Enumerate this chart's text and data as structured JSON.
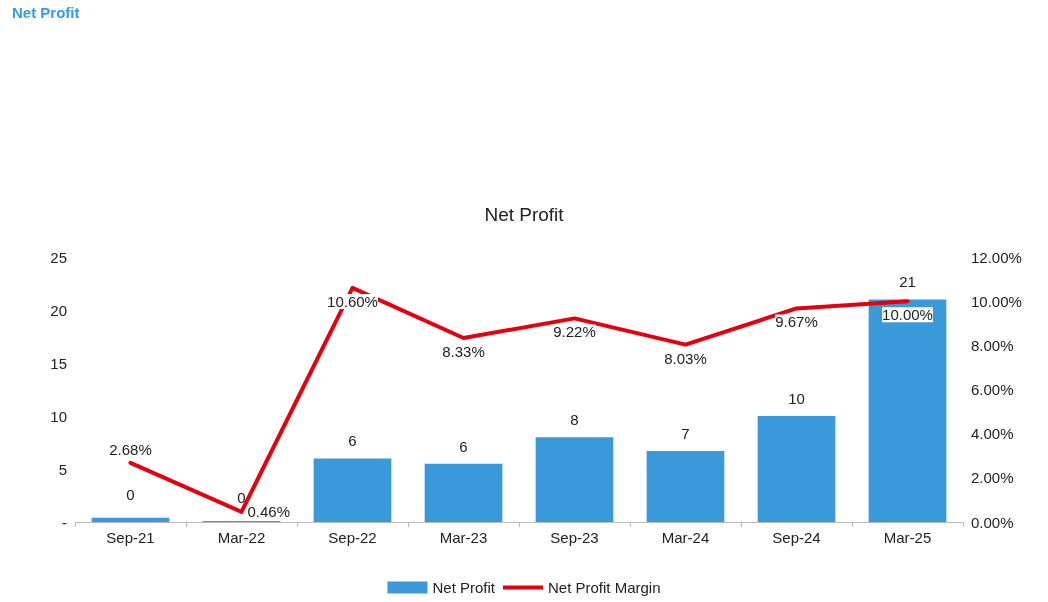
{
  "chart_data": {
    "type": "bar",
    "title": "Net Profit",
    "annotations": [
      "Net Profit"
    ],
    "categories": [
      "Sep-21",
      "Mar-22",
      "Sep-22",
      "Mar-23",
      "Sep-23",
      "Mar-24",
      "Sep-24",
      "Mar-25"
    ],
    "series": [
      {
        "name": "Net Profit",
        "color": "#3a9ad9",
        "values": [
          0.4,
          0.1,
          6,
          5.5,
          8,
          6.7,
          10,
          21
        ],
        "value_labels": [
          "0",
          "0",
          "6",
          "6",
          "8",
          "7",
          "10",
          "21"
        ]
      },
      {
        "name": "Net Profit Margin",
        "type": "line",
        "axis": "y2",
        "color": "#e3000f",
        "values": [
          2.68,
          0.46,
          10.6,
          8.33,
          9.22,
          8.03,
          9.67,
          10.0
        ],
        "value_labels": [
          "2.68%",
          "0.46%",
          "10.60%",
          "8.33%",
          "9.22%",
          "8.03%",
          "9.67%",
          "10.00%"
        ]
      }
    ],
    "ylim": [
      0,
      25
    ],
    "yticks": [
      {
        "value": 0,
        "label": "-"
      },
      5,
      10,
      15,
      20,
      25
    ],
    "y2lim": [
      0,
      12
    ],
    "y2ticks": [
      {
        "value": 0,
        "label": "0.00%"
      },
      {
        "value": 2,
        "label": "2.00%"
      },
      {
        "value": 4,
        "label": "4.00%"
      },
      {
        "value": 6,
        "label": "6.00%"
      },
      {
        "value": 8,
        "label": "8.00%"
      },
      {
        "value": 10,
        "label": "10.00%"
      },
      {
        "value": 12,
        "label": "12.00%"
      }
    ],
    "grid": false,
    "legend": "bottom",
    "marker": "none",
    "line_style": "solid"
  }
}
